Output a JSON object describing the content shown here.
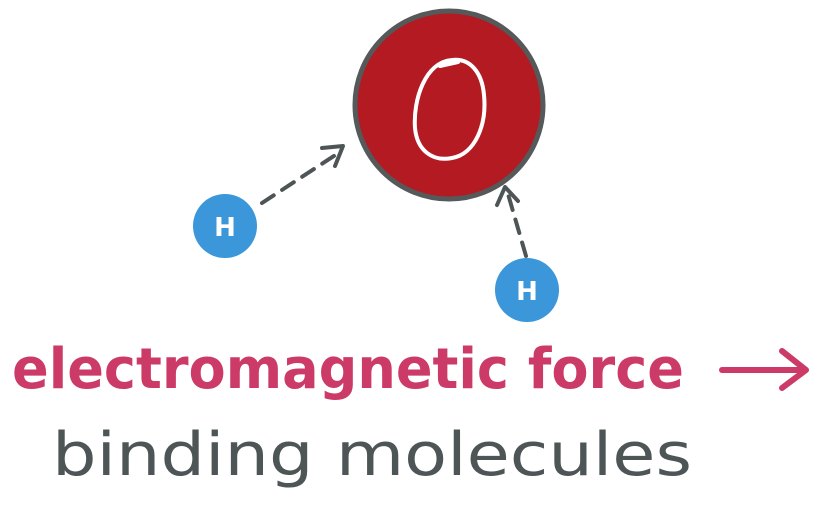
{
  "diagram": {
    "oxygen": {
      "symbol": "O",
      "fill": "#b31a22",
      "stroke": "#55595a"
    },
    "hydrogen_left": {
      "symbol": "H",
      "fill": "#3b97d9"
    },
    "hydrogen_right": {
      "symbol": "H",
      "fill": "#3b97d9"
    },
    "arrow_color": "#4e5556"
  },
  "caption": {
    "title": "electromagnetic force",
    "title_color": "#cc3a68",
    "arrow_glyph": "→",
    "subtitle": "binding molecules",
    "subtitle_color": "#4e5556"
  }
}
